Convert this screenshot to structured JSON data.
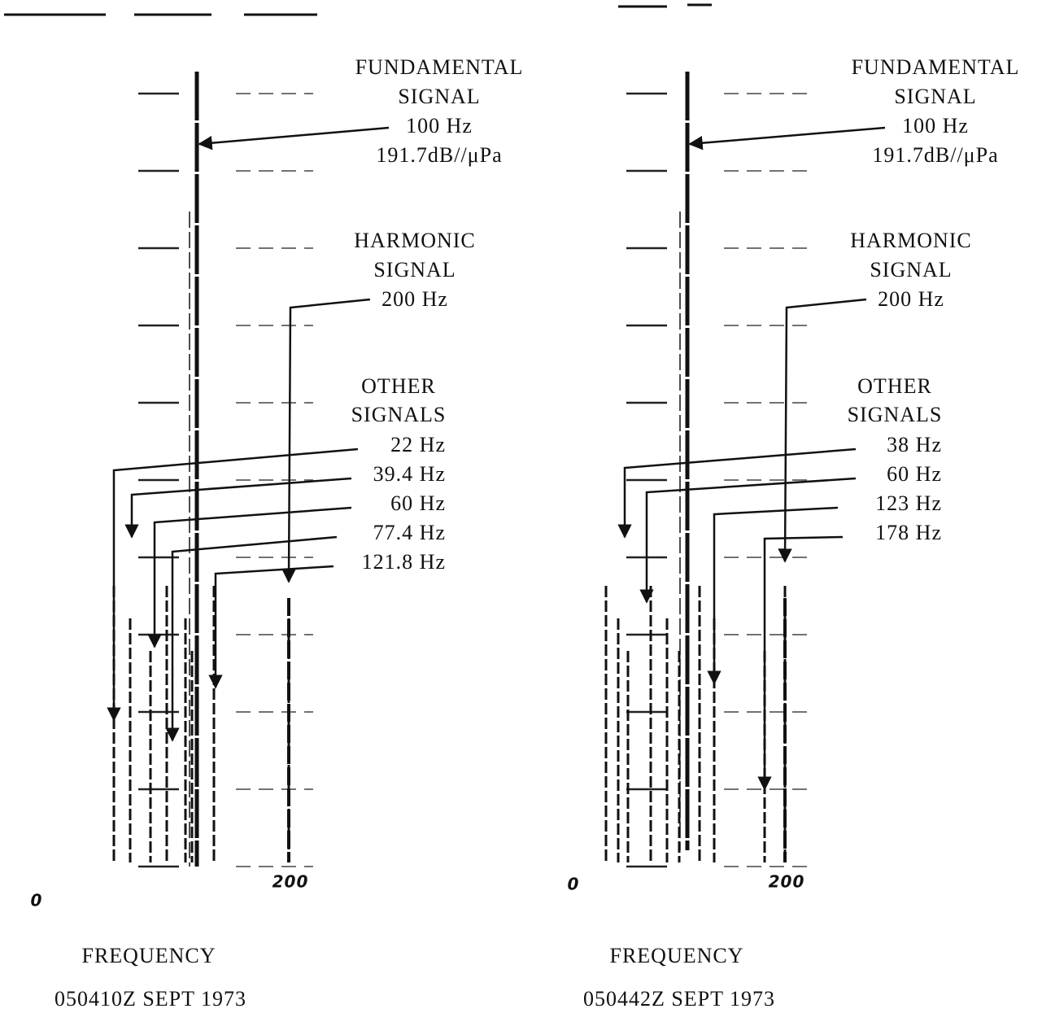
{
  "panels": [
    {
      "fundamental_label": [
        "FUNDAMENTAL",
        "SIGNAL",
        "100 Hz",
        "191.7dB//μPa"
      ],
      "harmonic_label": [
        "HARMONIC",
        "SIGNAL",
        "200 Hz"
      ],
      "other_label": [
        "OTHER",
        "SIGNALS"
      ],
      "other_signals": [
        "22 Hz",
        "39.4 Hz",
        "60 Hz",
        "77.4 Hz",
        "121.8 Hz"
      ],
      "axis_start": "0",
      "axis_end": "200",
      "axis_title": "FREQUENCY",
      "timestamp": "050410Z SEPT 1973"
    },
    {
      "fundamental_label": [
        "FUNDAMENTAL",
        "SIGNAL",
        "100 Hz",
        "191.7dB//μPa"
      ],
      "harmonic_label": [
        "HARMONIC",
        "SIGNAL",
        "200 Hz"
      ],
      "other_label": [
        "OTHER",
        "SIGNALS"
      ],
      "other_signals": [
        "38 Hz",
        "60 Hz",
        "123 Hz",
        "178 Hz"
      ],
      "axis_start": "0",
      "axis_end": "200",
      "axis_title": "FREQUENCY",
      "timestamp": "050442Z SEPT 1973"
    }
  ]
}
